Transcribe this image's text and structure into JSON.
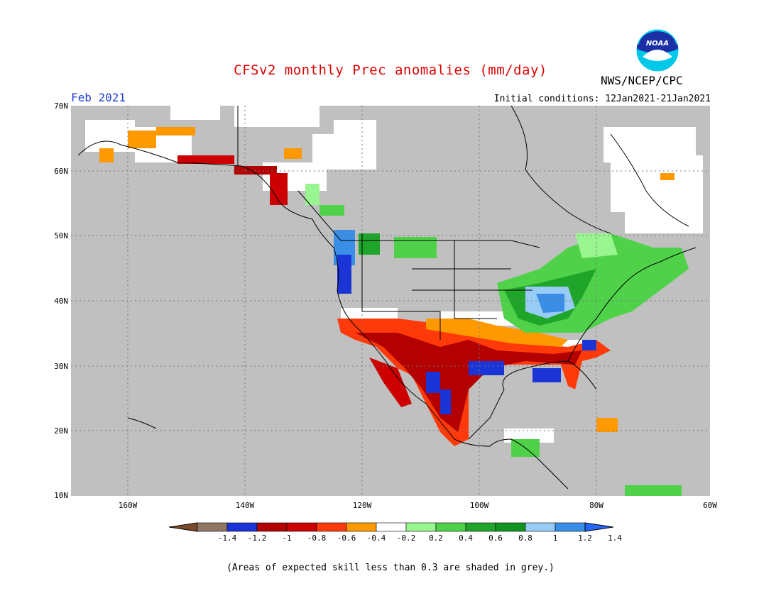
{
  "header": {
    "title": "CFSv2 monthly Prec anomalies (mm/day)",
    "org": "NWS/NCEP/CPC",
    "month": "Feb 2021",
    "initial_conditions": "Initial conditions: 12Jan2021-21Jan2021",
    "logo_text": "NOAA"
  },
  "axes": {
    "lat_labels": [
      "70N",
      "60N",
      "50N",
      "40N",
      "30N",
      "20N",
      "10N"
    ],
    "lon_labels": [
      "160W",
      "140W",
      "120W",
      "100W",
      "80W",
      "60W"
    ]
  },
  "colorbar": {
    "labels": [
      "-1.4",
      "-1.2",
      "-1",
      "-0.8",
      "-0.6",
      "-0.4",
      "-0.2",
      "0.2",
      "0.4",
      "0.6",
      "0.8",
      "1",
      "1.2",
      "1.4"
    ],
    "colors": [
      "#7a4a2a",
      "#8f7766",
      "#1a34d6",
      "#b30000",
      "#cc0000",
      "#ff3a0a",
      "#ff9900",
      "#ffffff",
      "#99f58f",
      "#4fd24a",
      "#1fa52a",
      "#129420",
      "#99ccf5",
      "#3a8ee6",
      "#2266ff"
    ]
  },
  "colors": {
    "grey": "#c0c0c0",
    "coast": "#000000"
  },
  "footnote": "(Areas of expected skill less than 0.3 are shaded in grey.)"
}
